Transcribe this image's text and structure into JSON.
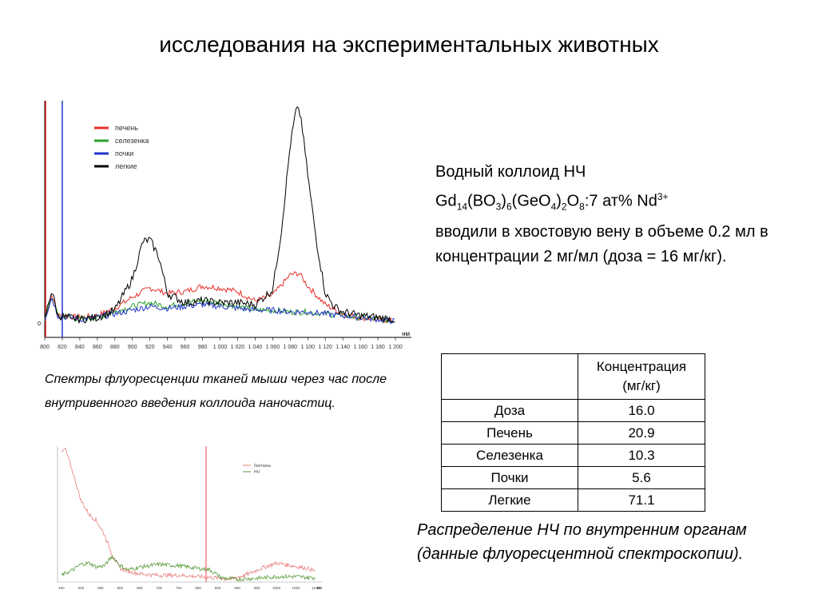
{
  "title": "исследования на экспериментальных животных",
  "colloid": {
    "line1": "Водный коллоид НЧ",
    "formula": [
      {
        "t": "Gd"
      },
      {
        "t": "14",
        "s": "sub"
      },
      {
        "t": "(BO"
      },
      {
        "t": "3",
        "s": "sub"
      },
      {
        "t": ")"
      },
      {
        "t": "6",
        "s": "sub"
      },
      {
        "t": "(GeO"
      },
      {
        "t": "4",
        "s": "sub"
      },
      {
        "t": ")"
      },
      {
        "t": "2",
        "s": "sub"
      },
      {
        "t": "O"
      },
      {
        "t": "8",
        "s": "sub"
      },
      {
        "t": ":7 ат% Nd"
      },
      {
        "t": "3+",
        "s": "sup"
      }
    ],
    "rest": "вводили в хвостовую вену в объеме 0.2 мл в концентрации 2 мг/мл (доза = 16 мг/кг)."
  },
  "caption_spectra": "Спектры флуоресценции тканей мыши через час после внутривенного введения коллоида наночастиц.",
  "caption_dist": "Распределение НЧ по внутренним органам (данные флуоресцентной спектроскопии).",
  "table": {
    "header_line1": "Концентрация",
    "header_line2": "(мг/кг)",
    "rows": [
      {
        "name": "Доза",
        "value": "16.0"
      },
      {
        "name": "Печень",
        "value": "20.9"
      },
      {
        "name": "Селезенка",
        "value": "10.3"
      },
      {
        "name": "Почки",
        "value": "5.6"
      },
      {
        "name": "Легкие",
        "value": "71.1"
      }
    ]
  },
  "chart_data": [
    {
      "type": "line",
      "xlabel": "нм",
      "xlim": [
        800,
        1200
      ],
      "ylim": [
        -0.3,
        6.0
      ],
      "y_tick_label": "0",
      "x_ticks": [
        "800",
        "820",
        "840",
        "860",
        "880",
        "900",
        "920",
        "940",
        "960",
        "980",
        "1 000",
        "1 020",
        "1 040",
        "1 060",
        "1 080",
        "1 100",
        "1 120",
        "1 140",
        "1 160",
        "1 180",
        "1 200"
      ],
      "vlines": [
        {
          "x": 801,
          "color": "#e8302a"
        },
        {
          "x": 820,
          "color": "#2233cc"
        }
      ],
      "series": [
        {
          "name": "печень",
          "color": "#e8302a",
          "points": [
            [
              800,
              0.1
            ],
            [
              808,
              0.8
            ],
            [
              815,
              0.2
            ],
            [
              840,
              0.15
            ],
            [
              860,
              0.2
            ],
            [
              880,
              0.4
            ],
            [
              900,
              0.7
            ],
            [
              920,
              0.95
            ],
            [
              940,
              0.8
            ],
            [
              960,
              0.85
            ],
            [
              980,
              1.0
            ],
            [
              1000,
              0.95
            ],
            [
              1020,
              0.85
            ],
            [
              1040,
              0.6
            ],
            [
              1060,
              0.75
            ],
            [
              1080,
              1.3
            ],
            [
              1090,
              1.35
            ],
            [
              1100,
              1.0
            ],
            [
              1120,
              0.5
            ],
            [
              1140,
              0.25
            ],
            [
              1160,
              0.15
            ],
            [
              1180,
              0.1
            ],
            [
              1200,
              0.05
            ]
          ]
        },
        {
          "name": "селезенка",
          "color": "#2aa02a",
          "points": [
            [
              800,
              0.1
            ],
            [
              808,
              0.7
            ],
            [
              815,
              0.2
            ],
            [
              840,
              0.1
            ],
            [
              860,
              0.15
            ],
            [
              880,
              0.3
            ],
            [
              900,
              0.45
            ],
            [
              920,
              0.55
            ],
            [
              940,
              0.45
            ],
            [
              960,
              0.55
            ],
            [
              980,
              0.6
            ],
            [
              1000,
              0.55
            ],
            [
              1020,
              0.45
            ],
            [
              1040,
              0.35
            ],
            [
              1060,
              0.35
            ],
            [
              1080,
              0.3
            ],
            [
              1100,
              0.3
            ],
            [
              1120,
              0.25
            ],
            [
              1140,
              0.2
            ],
            [
              1160,
              0.15
            ],
            [
              1180,
              0.1
            ],
            [
              1200,
              0.05
            ]
          ]
        },
        {
          "name": "почки",
          "color": "#2233cc",
          "points": [
            [
              800,
              0.1
            ],
            [
              808,
              0.7
            ],
            [
              815,
              0.2
            ],
            [
              840,
              0.1
            ],
            [
              860,
              0.15
            ],
            [
              880,
              0.25
            ],
            [
              900,
              0.35
            ],
            [
              920,
              0.45
            ],
            [
              940,
              0.4
            ],
            [
              960,
              0.45
            ],
            [
              980,
              0.5
            ],
            [
              1000,
              0.45
            ],
            [
              1020,
              0.4
            ],
            [
              1040,
              0.35
            ],
            [
              1060,
              0.35
            ],
            [
              1080,
              0.3
            ],
            [
              1100,
              0.3
            ],
            [
              1120,
              0.25
            ],
            [
              1140,
              0.2
            ],
            [
              1160,
              0.15
            ],
            [
              1180,
              0.1
            ],
            [
              1200,
              0.05
            ]
          ]
        },
        {
          "name": "легкие",
          "color": "#000000",
          "points": [
            [
              800,
              0.1
            ],
            [
              808,
              0.9
            ],
            [
              815,
              0.2
            ],
            [
              840,
              0.1
            ],
            [
              860,
              0.15
            ],
            [
              880,
              0.35
            ],
            [
              900,
              1.2
            ],
            [
              912,
              2.2
            ],
            [
              920,
              2.25
            ],
            [
              930,
              1.8
            ],
            [
              940,
              0.8
            ],
            [
              960,
              0.55
            ],
            [
              980,
              0.6
            ],
            [
              1000,
              0.55
            ],
            [
              1020,
              0.55
            ],
            [
              1040,
              0.5
            ],
            [
              1060,
              0.9
            ],
            [
              1070,
              2.5
            ],
            [
              1080,
              4.8
            ],
            [
              1087,
              5.8
            ],
            [
              1092,
              5.6
            ],
            [
              1100,
              4.0
            ],
            [
              1110,
              2.2
            ],
            [
              1120,
              0.8
            ],
            [
              1130,
              0.45
            ],
            [
              1140,
              0.3
            ],
            [
              1160,
              0.2
            ],
            [
              1180,
              0.15
            ],
            [
              1200,
              0.1
            ]
          ]
        }
      ]
    },
    {
      "type": "line",
      "xlabel": "нм",
      "xlim": [
        440,
        1100
      ],
      "ylim": [
        0,
        1.0
      ],
      "vlines": [
        {
          "x": 820,
          "color": "#e8302a"
        }
      ],
      "x_ticks": [
        "450",
        "500",
        "550",
        "600",
        "650",
        "700",
        "750",
        "800",
        "850",
        "900",
        "950",
        "1000",
        "1050",
        "1100"
      ],
      "series": [
        {
          "name": "биоткань",
          "color": "#e88080",
          "points": [
            [
              450,
              0.95
            ],
            [
              460,
              0.98
            ],
            [
              480,
              0.8
            ],
            [
              500,
              0.6
            ],
            [
              520,
              0.5
            ],
            [
              540,
              0.45
            ],
            [
              560,
              0.35
            ],
            [
              580,
              0.2
            ],
            [
              600,
              0.1
            ],
            [
              620,
              0.08
            ],
            [
              650,
              0.06
            ],
            [
              700,
              0.05
            ],
            [
              750,
              0.05
            ],
            [
              800,
              0.04
            ],
            [
              850,
              0.03
            ],
            [
              880,
              0.02
            ],
            [
              920,
              0.05
            ],
            [
              960,
              0.1
            ],
            [
              1000,
              0.14
            ],
            [
              1040,
              0.12
            ],
            [
              1080,
              0.1
            ],
            [
              1100,
              0.08
            ]
          ]
        },
        {
          "name": "НЧ",
          "color": "#5a9a3a",
          "points": [
            [
              450,
              0.05
            ],
            [
              480,
              0.09
            ],
            [
              500,
              0.13
            ],
            [
              520,
              0.14
            ],
            [
              540,
              0.11
            ],
            [
              560,
              0.12
            ],
            [
              580,
              0.19
            ],
            [
              600,
              0.12
            ],
            [
              620,
              0.09
            ],
            [
              650,
              0.11
            ],
            [
              700,
              0.13
            ],
            [
              750,
              0.12
            ],
            [
              800,
              0.1
            ],
            [
              830,
              0.09
            ],
            [
              860,
              0.03
            ],
            [
              900,
              0.02
            ],
            [
              960,
              0.03
            ],
            [
              1000,
              0.04
            ],
            [
              1050,
              0.04
            ],
            [
              1100,
              0.03
            ]
          ]
        }
      ]
    }
  ]
}
